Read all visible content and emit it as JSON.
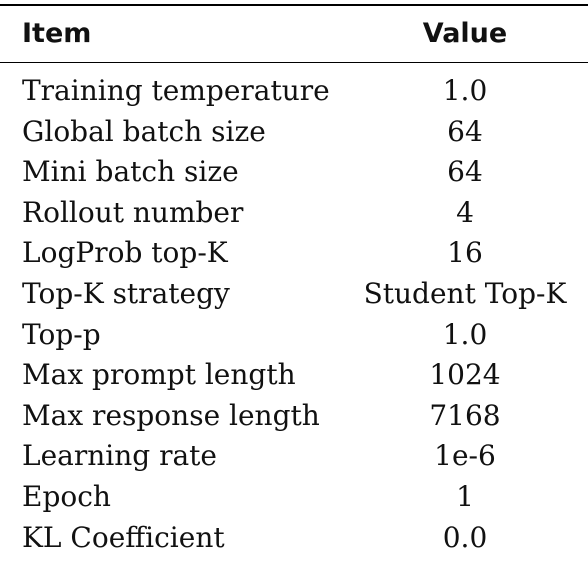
{
  "table": {
    "header": [
      "Item",
      "Value"
    ],
    "rows": [
      [
        "Training temperature",
        "1.0"
      ],
      [
        "Global batch size",
        "64"
      ],
      [
        "Mini batch size",
        "64"
      ],
      [
        "Rollout number",
        "4"
      ],
      [
        "LogProb top-K",
        "16"
      ],
      [
        "Top-K strategy",
        "Student Top-K"
      ],
      [
        "Top-p",
        "1.0"
      ],
      [
        "Max prompt length",
        "1024"
      ],
      [
        "Max response length",
        "7168"
      ],
      [
        "Learning rate",
        "1e-6"
      ],
      [
        "Epoch",
        "1"
      ],
      [
        "KL Coefficient",
        "0.0"
      ]
    ]
  }
}
